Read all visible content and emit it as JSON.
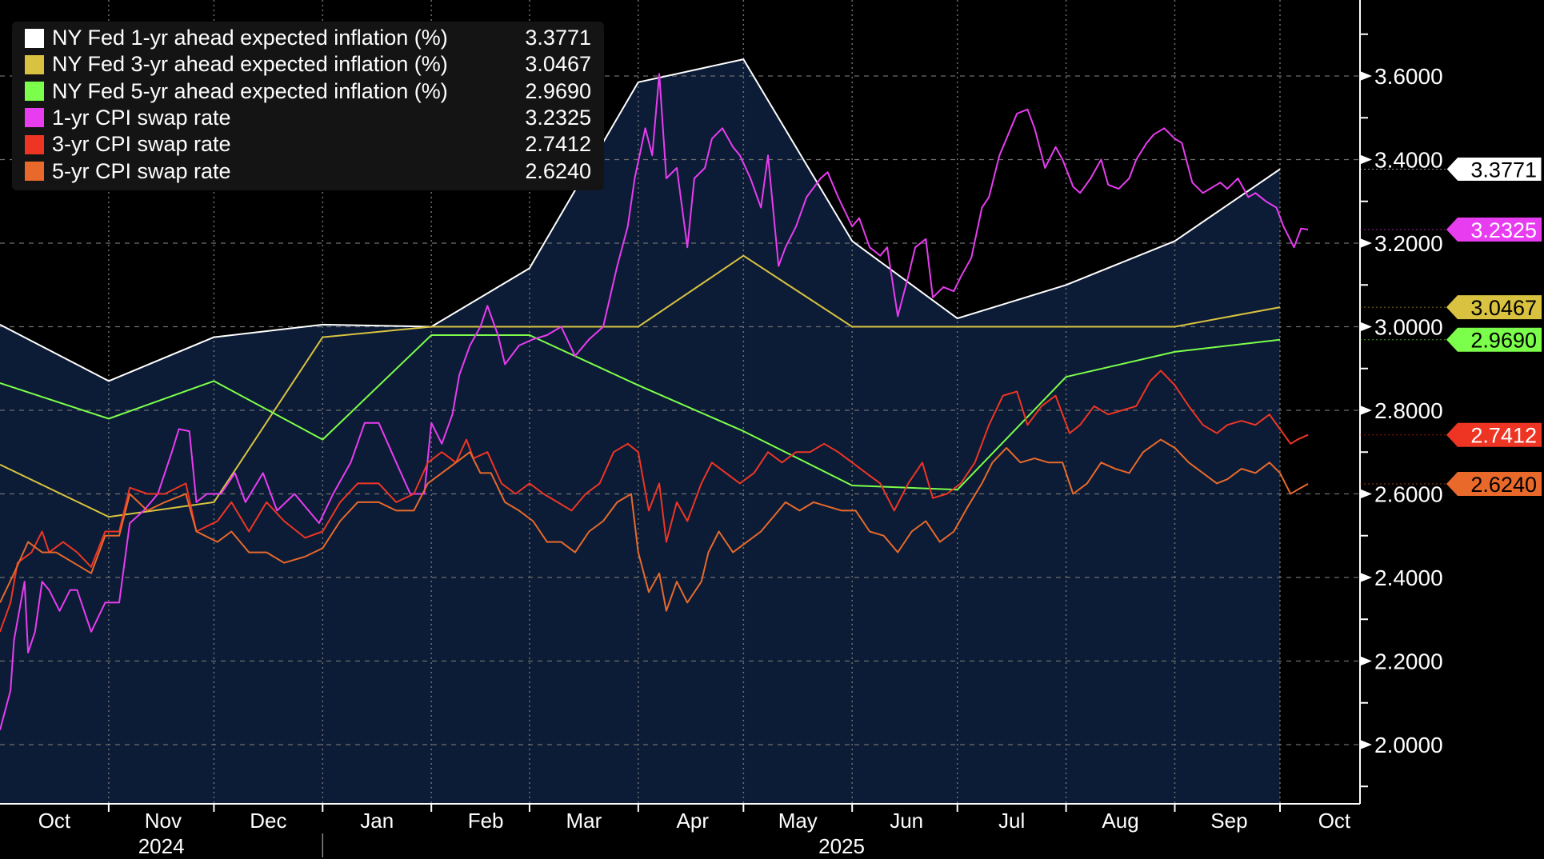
{
  "chart_data": {
    "type": "line",
    "title": "",
    "xlabel": "",
    "ylabel": "",
    "ylim": [
      1.9,
      3.7
    ],
    "yticks": [
      "2.0000",
      "2.2000",
      "2.4000",
      "2.6000",
      "2.8000",
      "3.0000",
      "3.2000",
      "3.4000",
      "3.6000"
    ],
    "x_unit": "days since 2024-10-01",
    "xlim": [
      0,
      392
    ],
    "months": [
      {
        "label": "Oct",
        "day": 0
      },
      {
        "label": "Nov",
        "day": 31
      },
      {
        "label": "Dec",
        "day": 61
      },
      {
        "label": "Jan",
        "day": 92
      },
      {
        "label": "Feb",
        "day": 123
      },
      {
        "label": "Mar",
        "day": 151
      },
      {
        "label": "Apr",
        "day": 182
      },
      {
        "label": "May",
        "day": 212
      },
      {
        "label": "Jun",
        "day": 243
      },
      {
        "label": "Jul",
        "day": 273
      },
      {
        "label": "Aug",
        "day": 304
      },
      {
        "label": "Sep",
        "day": 335
      },
      {
        "label": "Oct",
        "day": 365
      }
    ],
    "years": [
      {
        "label": "2024",
        "day": 16
      },
      {
        "label": "2025",
        "day": 240
      }
    ],
    "grid": true,
    "legend_position": "top-left",
    "series": [
      {
        "name": "NY Fed 1-yr ahead expected inflation (%)",
        "last": "3.3771",
        "color": "#ffffff",
        "label_text": "#000000",
        "filled": true,
        "x": [
          0,
          31,
          61,
          92,
          123,
          151,
          182,
          212,
          243,
          273,
          304,
          335,
          365
        ],
        "y": [
          3.005,
          2.87,
          2.975,
          3.005,
          3.0,
          3.14,
          3.585,
          3.64,
          3.205,
          3.02,
          3.1,
          3.205,
          3.3771
        ]
      },
      {
        "name": "NY Fed 3-yr ahead expected inflation (%)",
        "last": "3.0467",
        "color": "#d9c23f",
        "label_text": "#000000",
        "x": [
          0,
          31,
          61,
          92,
          123,
          151,
          182,
          212,
          243,
          273,
          304,
          335,
          365
        ],
        "y": [
          2.67,
          2.545,
          2.58,
          2.975,
          3.0,
          3.0,
          3.0,
          3.17,
          3.0,
          3.0,
          3.0,
          3.0,
          3.0467
        ]
      },
      {
        "name": "NY Fed 5-yr ahead expected inflation (%)",
        "last": "2.9690",
        "color": "#7cff4a",
        "label_text": "#000000",
        "x": [
          0,
          31,
          61,
          92,
          123,
          151,
          182,
          212,
          243,
          273,
          304,
          335,
          365
        ],
        "y": [
          2.865,
          2.78,
          2.87,
          2.73,
          2.98,
          2.98,
          2.86,
          2.75,
          2.62,
          2.61,
          2.88,
          2.94,
          2.969
        ]
      },
      {
        "name": "1-yr CPI swap rate",
        "last": "3.2325",
        "color": "#e83cf0",
        "label_text": "#ffffff",
        "x": [
          0,
          3,
          4,
          7,
          8,
          10,
          12,
          14,
          17,
          20,
          22,
          26,
          30,
          34,
          37,
          41,
          45,
          49,
          51,
          54,
          56,
          59,
          63,
          67,
          70,
          75,
          79,
          84,
          91,
          95,
          100,
          104,
          108,
          113,
          117,
          121,
          123,
          126,
          129,
          131,
          134,
          137,
          139,
          142,
          144,
          148,
          152,
          156,
          160,
          164,
          168,
          172,
          176,
          179,
          181,
          184,
          186,
          188,
          190,
          193,
          196,
          198,
          201,
          203,
          206,
          209,
          211,
          214,
          217,
          219,
          222,
          224,
          227,
          230,
          234,
          236,
          239,
          243,
          245,
          248,
          251,
          253,
          256,
          259,
          261,
          264,
          266,
          269,
          272,
          274,
          277,
          280,
          282,
          285,
          287,
          290,
          293,
          295,
          298,
          301,
          303,
          306,
          308,
          311,
          314,
          316,
          319,
          322,
          324,
          327,
          329,
          332,
          335,
          337,
          340,
          343,
          345,
          348,
          350,
          353,
          356,
          358,
          361,
          364,
          366,
          369,
          371,
          373
        ],
        "y": [
          2.035,
          2.13,
          2.25,
          2.39,
          2.22,
          2.27,
          2.39,
          2.37,
          2.32,
          2.37,
          2.37,
          2.27,
          2.34,
          2.34,
          2.53,
          2.56,
          2.6,
          2.7,
          2.755,
          2.75,
          2.58,
          2.6,
          2.6,
          2.65,
          2.58,
          2.65,
          2.56,
          2.6,
          2.53,
          2.6,
          2.675,
          2.77,
          2.77,
          2.675,
          2.6,
          2.6,
          2.77,
          2.72,
          2.79,
          2.885,
          2.955,
          3.0,
          3.05,
          2.98,
          2.91,
          2.955,
          2.97,
          2.98,
          3.0,
          2.93,
          2.97,
          3.0,
          3.145,
          3.24,
          3.355,
          3.475,
          3.41,
          3.605,
          3.355,
          3.38,
          3.19,
          3.355,
          3.38,
          3.45,
          3.475,
          3.43,
          3.41,
          3.355,
          3.285,
          3.41,
          3.145,
          3.19,
          3.24,
          3.31,
          3.355,
          3.37,
          3.31,
          3.24,
          3.26,
          3.19,
          3.17,
          3.19,
          3.025,
          3.12,
          3.19,
          3.21,
          3.07,
          3.095,
          3.085,
          3.12,
          3.165,
          3.285,
          3.31,
          3.41,
          3.45,
          3.51,
          3.52,
          3.475,
          3.38,
          3.43,
          3.4,
          3.335,
          3.32,
          3.355,
          3.4,
          3.34,
          3.33,
          3.355,
          3.4,
          3.44,
          3.46,
          3.475,
          3.45,
          3.44,
          3.345,
          3.32,
          3.33,
          3.345,
          3.33,
          3.355,
          3.31,
          3.32,
          3.3,
          3.285,
          3.24,
          3.19,
          3.235,
          3.2325
        ]
      },
      {
        "name": "3-yr CPI swap rate",
        "last": "2.7412",
        "color": "#ee3524",
        "label_text": "#ffffff",
        "x": [
          0,
          3,
          5,
          9,
          12,
          14,
          18,
          22,
          26,
          30,
          34,
          37,
          42,
          47,
          53,
          56,
          62,
          66,
          71,
          76,
          81,
          87,
          92,
          97,
          102,
          108,
          113,
          118,
          122,
          126,
          130,
          133,
          135,
          139,
          143,
          147,
          151,
          155,
          159,
          163,
          167,
          171,
          175,
          179,
          182,
          185,
          188,
          190,
          193,
          196,
          200,
          203,
          207,
          211,
          215,
          219,
          223,
          227,
          231,
          235,
          239,
          243,
          247,
          251,
          255,
          259,
          263,
          266,
          270,
          274,
          278,
          282,
          286,
          290,
          293,
          297,
          301,
          305,
          308,
          312,
          316,
          320,
          324,
          328,
          331,
          335,
          339,
          343,
          347,
          350,
          354,
          358,
          362,
          365,
          368,
          370,
          373
        ],
        "y": [
          2.27,
          2.34,
          2.435,
          2.46,
          2.51,
          2.46,
          2.485,
          2.46,
          2.425,
          2.51,
          2.51,
          2.615,
          2.6,
          2.6,
          2.625,
          2.51,
          2.535,
          2.58,
          2.51,
          2.58,
          2.535,
          2.495,
          2.51,
          2.58,
          2.625,
          2.625,
          2.58,
          2.6,
          2.675,
          2.7,
          2.675,
          2.73,
          2.685,
          2.7,
          2.625,
          2.6,
          2.625,
          2.6,
          2.58,
          2.56,
          2.6,
          2.625,
          2.7,
          2.72,
          2.7,
          2.56,
          2.625,
          2.485,
          2.58,
          2.535,
          2.625,
          2.675,
          2.65,
          2.625,
          2.65,
          2.7,
          2.675,
          2.7,
          2.7,
          2.72,
          2.7,
          2.675,
          2.65,
          2.625,
          2.56,
          2.625,
          2.675,
          2.59,
          2.6,
          2.625,
          2.675,
          2.765,
          2.835,
          2.845,
          2.765,
          2.81,
          2.835,
          2.745,
          2.765,
          2.81,
          2.79,
          2.8,
          2.81,
          2.87,
          2.895,
          2.86,
          2.81,
          2.765,
          2.745,
          2.765,
          2.775,
          2.765,
          2.79,
          2.755,
          2.72,
          2.73,
          2.7412
        ]
      },
      {
        "name": "5-yr CPI swap rate",
        "last": "2.6240",
        "color": "#e8692a",
        "label_text": "#000000",
        "x": [
          0,
          4,
          8,
          12,
          16,
          21,
          26,
          30,
          34,
          37,
          42,
          47,
          53,
          56,
          62,
          66,
          71,
          76,
          81,
          87,
          92,
          97,
          102,
          108,
          113,
          118,
          122,
          126,
          130,
          134,
          137,
          140,
          144,
          148,
          152,
          156,
          160,
          164,
          168,
          172,
          176,
          180,
          182,
          185,
          188,
          190,
          193,
          196,
          200,
          202,
          205,
          209,
          213,
          217,
          221,
          224,
          228,
          232,
          236,
          240,
          244,
          248,
          252,
          256,
          260,
          264,
          268,
          272,
          276,
          280,
          283,
          287,
          291,
          295,
          299,
          303,
          306,
          310,
          314,
          318,
          322,
          326,
          331,
          335,
          339,
          343,
          347,
          350,
          354,
          358,
          362,
          365,
          368,
          370,
          373
        ],
        "y": [
          2.34,
          2.41,
          2.485,
          2.46,
          2.46,
          2.435,
          2.41,
          2.5,
          2.5,
          2.6,
          2.56,
          2.58,
          2.6,
          2.51,
          2.485,
          2.51,
          2.46,
          2.46,
          2.435,
          2.45,
          2.47,
          2.535,
          2.58,
          2.58,
          2.56,
          2.56,
          2.625,
          2.65,
          2.675,
          2.7,
          2.65,
          2.65,
          2.58,
          2.56,
          2.535,
          2.485,
          2.485,
          2.46,
          2.51,
          2.535,
          2.58,
          2.6,
          2.46,
          2.365,
          2.41,
          2.32,
          2.39,
          2.34,
          2.39,
          2.46,
          2.51,
          2.46,
          2.485,
          2.51,
          2.55,
          2.58,
          2.56,
          2.58,
          2.57,
          2.56,
          2.56,
          2.51,
          2.5,
          2.46,
          2.51,
          2.535,
          2.485,
          2.51,
          2.57,
          2.625,
          2.675,
          2.71,
          2.675,
          2.685,
          2.675,
          2.675,
          2.6,
          2.625,
          2.675,
          2.66,
          2.65,
          2.7,
          2.73,
          2.71,
          2.675,
          2.65,
          2.625,
          2.635,
          2.66,
          2.65,
          2.675,
          2.65,
          2.6,
          2.61,
          2.624
        ]
      }
    ]
  }
}
